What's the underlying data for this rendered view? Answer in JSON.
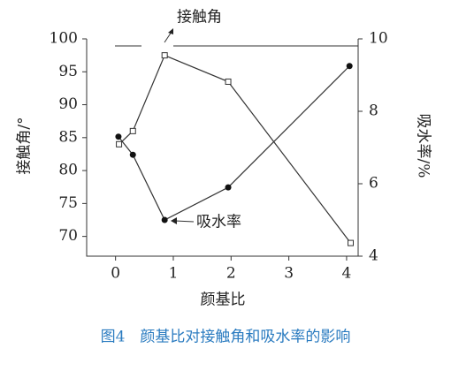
{
  "chart_data": {
    "type": "line",
    "caption": "图4　颜基比对接触角和吸水率的影响",
    "x_label": "颜基比",
    "y_label": "接触角/°",
    "y2_label": "吸水率/%",
    "xlim": [
      -0.5,
      4.2
    ],
    "xticks": [
      0,
      1,
      2,
      3,
      4
    ],
    "ylim": [
      67,
      100
    ],
    "yticks": [
      70,
      75,
      80,
      85,
      90,
      95,
      100
    ],
    "y2lim": [
      4,
      10
    ],
    "y2ticks": [
      4,
      6,
      8,
      10
    ],
    "series": [
      {
        "name": "接触角",
        "color": "#333333",
        "marker": "square-open",
        "x": [
          0.06,
          0.3,
          0.85,
          1.95,
          4.07
        ],
        "values": [
          84,
          86,
          97.5,
          93.5,
          69
        ]
      },
      {
        "name": "吸水率",
        "color": "#333333",
        "marker": "circle",
        "axis": "y2",
        "x": [
          0.05,
          0.3,
          0.85,
          1.95,
          4.05
        ],
        "values": [
          7.3,
          6.8,
          5.0,
          5.9,
          9.25
        ]
      }
    ]
  }
}
